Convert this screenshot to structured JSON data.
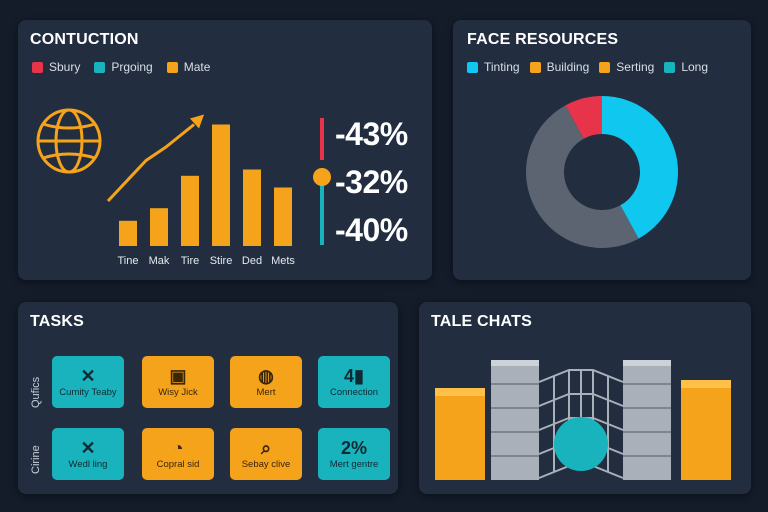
{
  "colors": {
    "background": "#141c2a",
    "panel": "#222e40",
    "orange": "#f6a31c",
    "teal": "#19b3bd",
    "red": "#e8344a",
    "cyan": "#10c8ef",
    "gray": "#5b6470"
  },
  "construction": {
    "title": "CONTUCTION",
    "legend": [
      {
        "label": "Sbury",
        "color": "#e8344a"
      },
      {
        "label": "Prgoing",
        "color": "#19b3bd"
      },
      {
        "label": "Mate",
        "color": "#f6a31c"
      }
    ],
    "icon": "globe-icon",
    "percents": [
      "-43%",
      "-32%",
      "-40%"
    ]
  },
  "chart_data": {
    "type": "bar",
    "title": "",
    "categories": [
      "Tine",
      "Mak",
      "Tire",
      "Stire",
      "Ded",
      "Mets"
    ],
    "values": [
      28,
      42,
      78,
      135,
      85,
      65
    ],
    "trend_line": [
      50,
      95,
      110,
      135
    ],
    "ylim": [
      0,
      150
    ],
    "xlabel": "",
    "ylabel": "",
    "grid": false
  },
  "resources": {
    "title": "FACE RESOURCES",
    "legend": [
      {
        "label": "Tinting",
        "color": "#10c8ef"
      },
      {
        "label": "Building",
        "color": "#f6a31c"
      },
      {
        "label": "Serting",
        "color": "#f6a31c"
      },
      {
        "label": "Long",
        "color": "#19b3bd"
      }
    ],
    "donut": [
      {
        "label": "red",
        "value": 8,
        "color": "#e8344a"
      },
      {
        "label": "cyan",
        "value": 42,
        "color": "#10c8ef"
      },
      {
        "label": "gray",
        "value": 50,
        "color": "#5b6470"
      }
    ]
  },
  "tasks": {
    "title": "TASKS",
    "row_labels": [
      "Qufics",
      "Cirine"
    ],
    "items": [
      {
        "label": "Cumity Teaby",
        "icon": "tools-icon",
        "glyph": "✕",
        "color": "teal"
      },
      {
        "label": "Wisy Jick",
        "icon": "photo-icon",
        "glyph": "▣",
        "color": "orange"
      },
      {
        "label": "Mert",
        "icon": "globe-icon",
        "glyph": "◍",
        "color": "orange"
      },
      {
        "label": "Connection",
        "icon": "signal-icon",
        "glyph": "4▮",
        "color": "teal"
      },
      {
        "label": "Wedl ling",
        "icon": "tools-icon",
        "glyph": "✕",
        "color": "teal"
      },
      {
        "label": "Copral sid",
        "icon": "pie-icon",
        "glyph": "◔",
        "color": "orange"
      },
      {
        "label": "Sebay clive",
        "icon": "search-icon",
        "glyph": "⌕",
        "color": "orange"
      },
      {
        "label": "Mert gentre",
        "icon": "percent-icon",
        "glyph": "2%",
        "color": "teal"
      }
    ]
  },
  "tale": {
    "title": "TALE CHATS"
  }
}
